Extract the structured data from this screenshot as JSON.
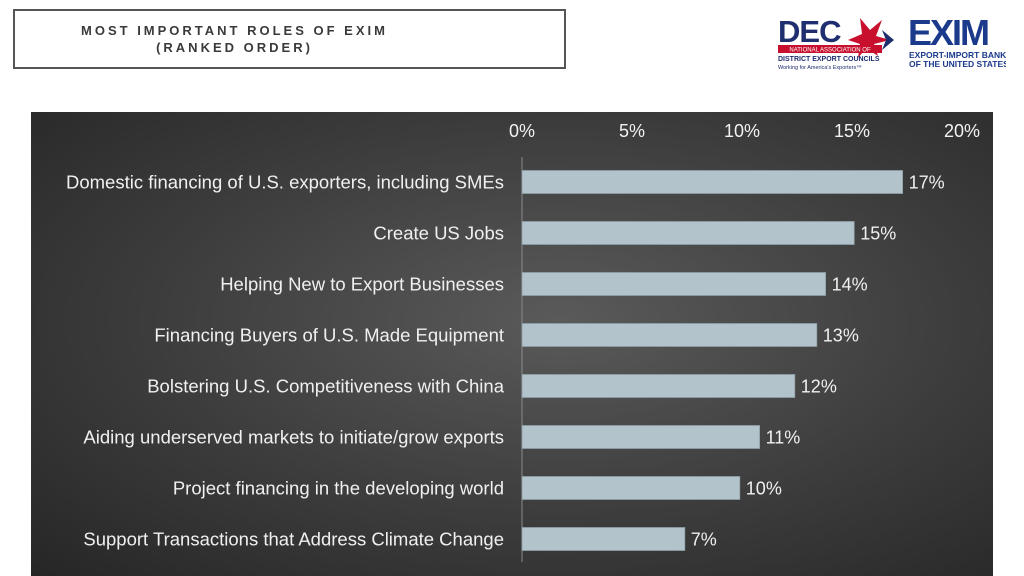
{
  "header": {
    "title_line1": "MOST IMPORTANT ROLES OF EXIM",
    "title_line2": "(RANKED ORDER)"
  },
  "logos": {
    "dec": {
      "main": "DEC",
      "band": "NATIONAL ASSOCIATION OF",
      "line2": "DISTRICT EXPORT COUNCILS",
      "line3": "Working for America's Exporters™",
      "color_navy": "#1f2e6e",
      "color_red": "#c8102e"
    },
    "exim": {
      "main": "EXIM",
      "line1": "EXPORT-IMPORT BANK",
      "line2": "OF THE UNITED STATES",
      "color": "#1b3a8c"
    }
  },
  "chart_data": {
    "type": "bar",
    "orientation": "horizontal",
    "title": "",
    "xlabel": "",
    "ylabel": "",
    "xlim": [
      0,
      20
    ],
    "x_ticks": [
      "0%",
      "5%",
      "10%",
      "15%",
      "20%"
    ],
    "x_tick_values": [
      0,
      5,
      10,
      15,
      20
    ],
    "x_axis_position": "top",
    "grid": false,
    "legend": "none",
    "categories": [
      "Domestic financing of U.S. exporters, including SMEs",
      "Create US Jobs",
      "Helping New to Export Businesses",
      "Financing Buyers of U.S. Made Equipment",
      "Bolstering U.S. Competitiveness with China",
      "Aiding underserved markets to initiate/grow exports",
      "Project financing in the developing world",
      "Support Transactions that Address Climate Change"
    ],
    "values": [
      17.3,
      15.1,
      13.8,
      13.4,
      12.4,
      10.8,
      9.9,
      7.4
    ],
    "data_labels": [
      "17%",
      "15%",
      "14%",
      "13%",
      "12%",
      "11%",
      "10%",
      "7%"
    ],
    "bar_color": "#b3c3cb",
    "background_color": "#3f3f3f"
  }
}
